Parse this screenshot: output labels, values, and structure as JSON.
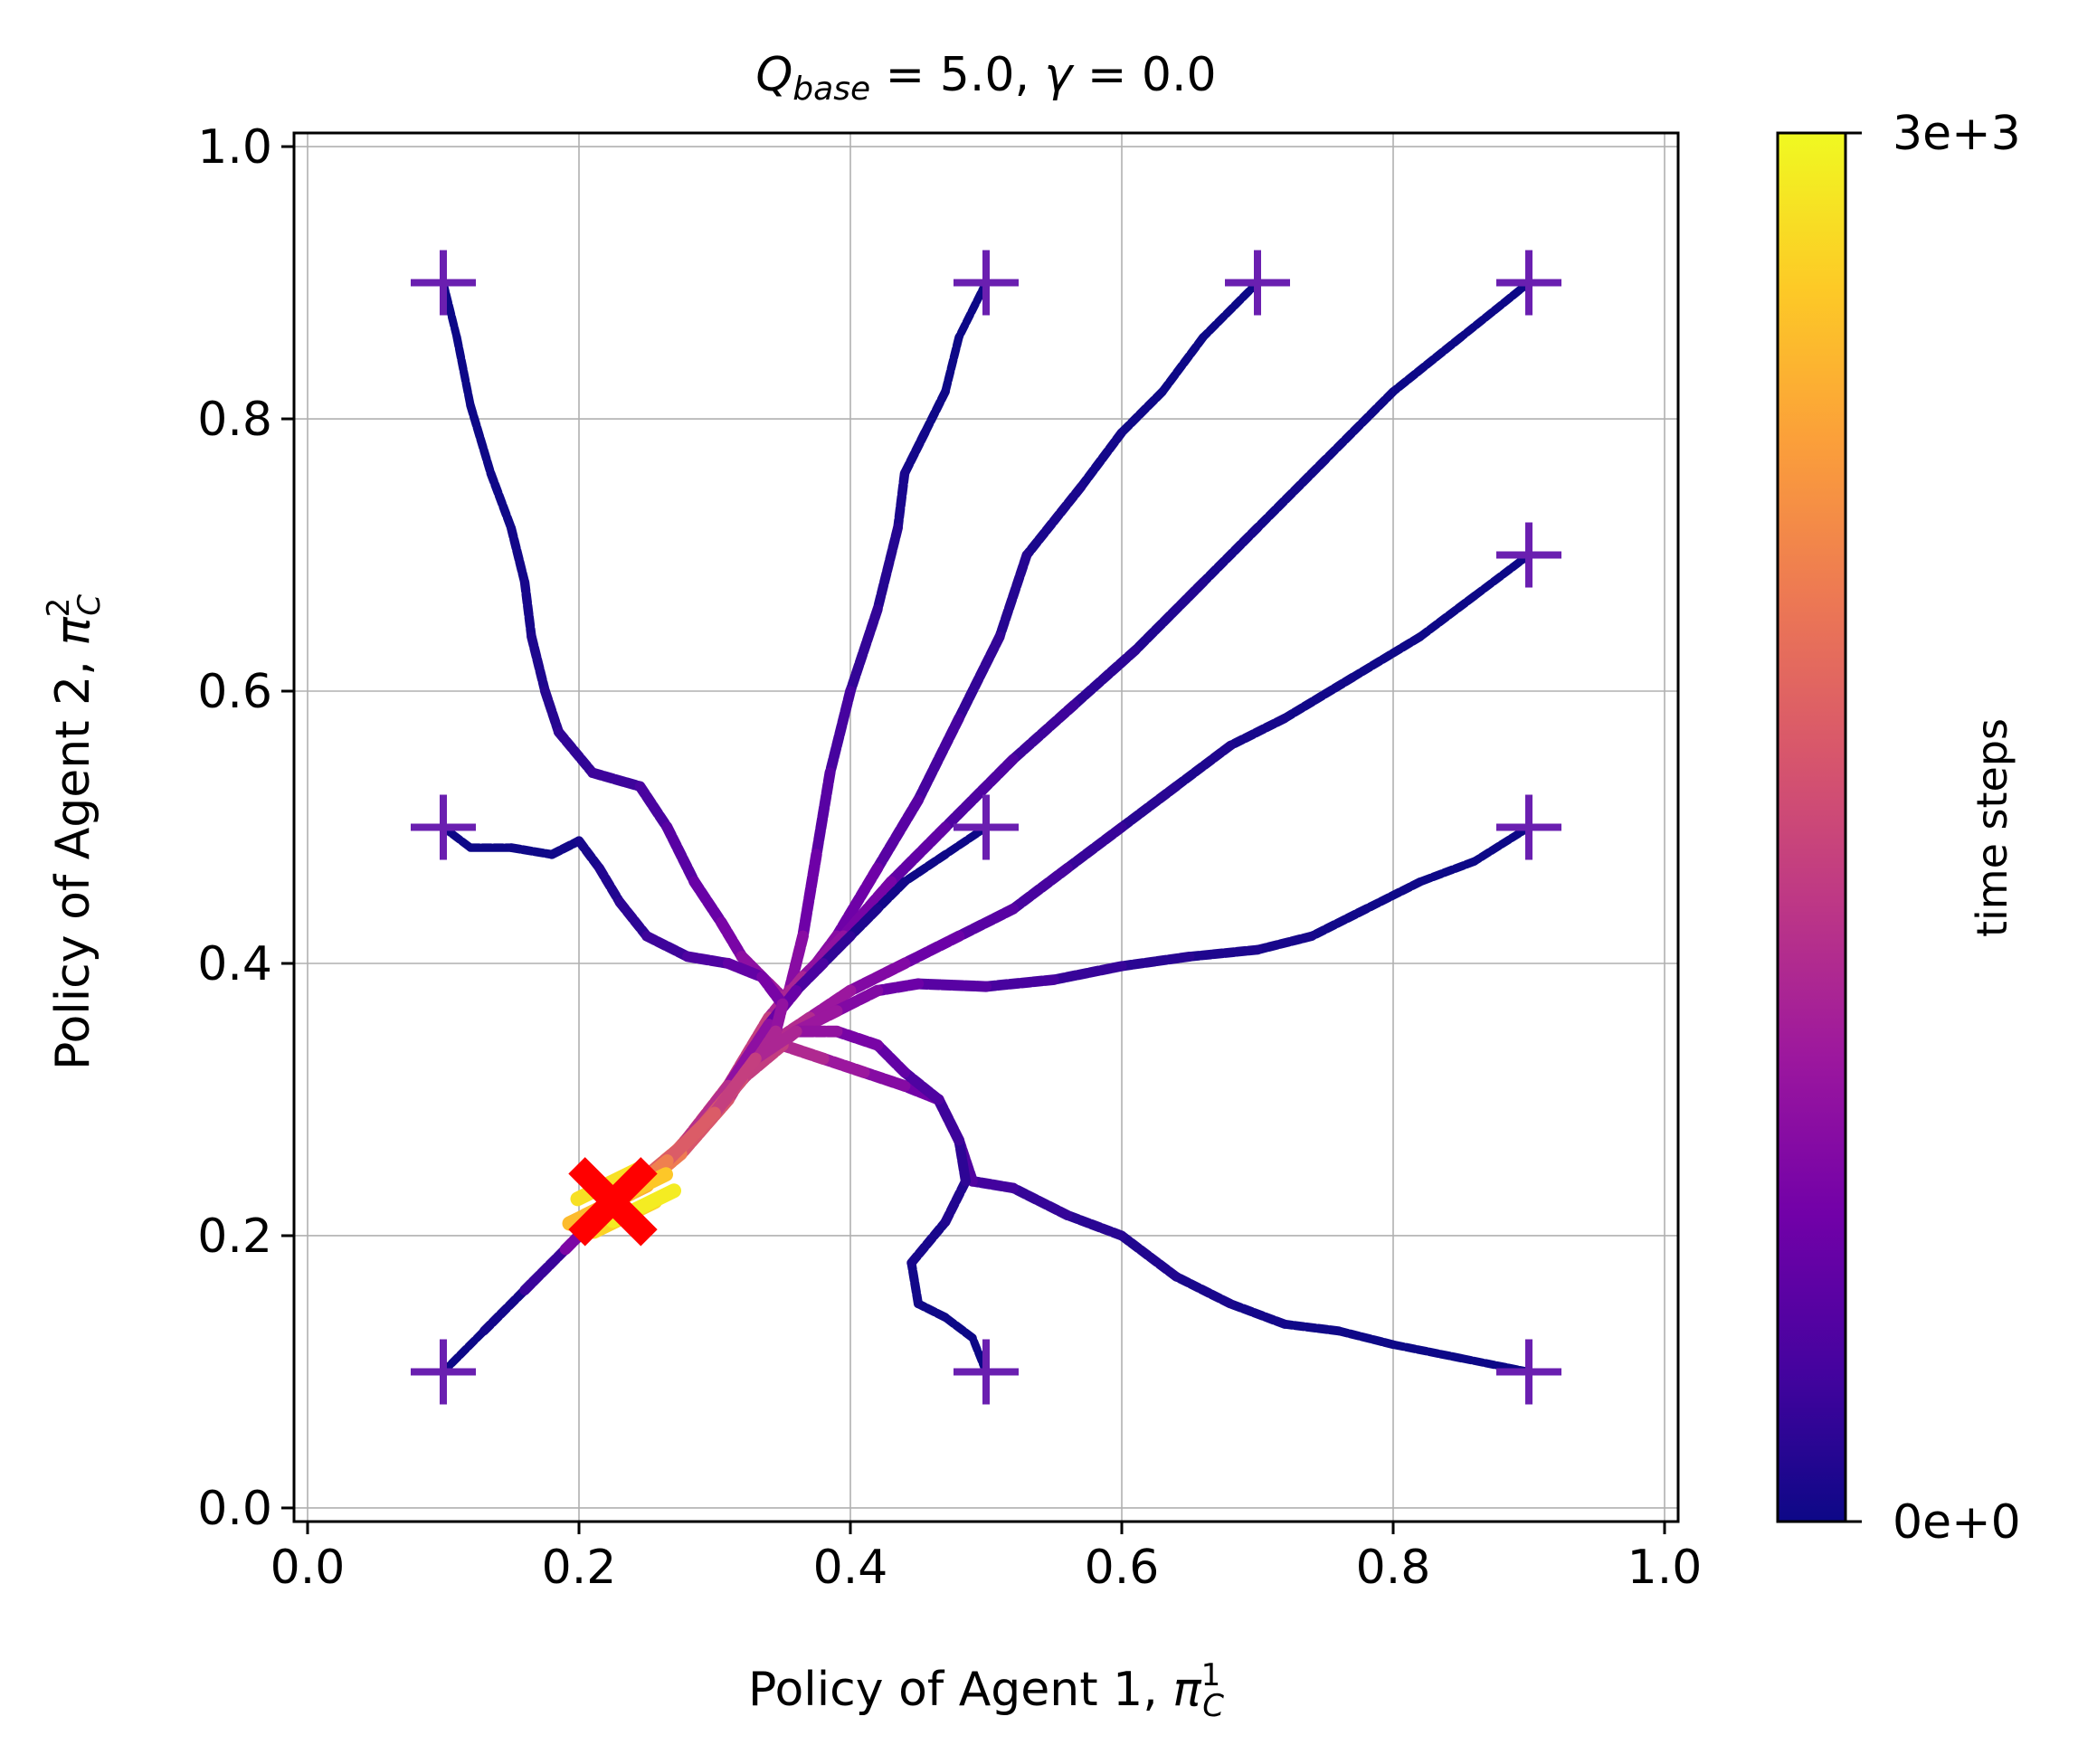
{
  "chart_data": {
    "type": "line",
    "title": {
      "q_symbol": "Q",
      "q_subscript": "base",
      "q_value": " = 5.0, ",
      "gamma_symbol": "γ",
      "gamma_value": " = 0.0"
    },
    "xlabel": {
      "prefix": "Policy of Agent 1, ",
      "symbol": "π",
      "superscript": "1",
      "subscript": "C"
    },
    "ylabel": {
      "prefix": "Policy of Agent 2, ",
      "symbol": "π",
      "superscript": "2",
      "subscript": "C"
    },
    "xlim": [
      -0.01,
      1.01
    ],
    "ylim": [
      -0.01,
      1.01
    ],
    "xticks": [
      0.0,
      0.2,
      0.4,
      0.6,
      0.8,
      1.0
    ],
    "yticks": [
      0.0,
      0.2,
      0.4,
      0.6,
      0.8,
      1.0
    ],
    "xtick_labels": [
      "0.0",
      "0.2",
      "0.4",
      "0.6",
      "0.8",
      "1.0"
    ],
    "ytick_labels": [
      "0.0",
      "0.2",
      "0.4",
      "0.6",
      "0.8",
      "1.0"
    ],
    "grid": true,
    "colormap": "plasma",
    "colors": {
      "cmap_stops": [
        "#0d0887",
        "#46039f",
        "#7201a8",
        "#9c179e",
        "#bd3786",
        "#d8576b",
        "#ed7953",
        "#fb9f3a",
        "#fdca26",
        "#f0f921"
      ],
      "start_marker": "#6a1fb0",
      "end_marker": "#ff0000",
      "grid": "#b0b0b0"
    },
    "colorbar": {
      "label": "time steps",
      "min": 0,
      "max": 3000,
      "min_label": "0e+0",
      "max_label": "3e+3"
    },
    "convergence_point": [
      0.225,
      0.225
    ],
    "series": [
      {
        "start": [
          0.1,
          0.9
        ],
        "points": [
          [
            0.1,
            0.9
          ],
          [
            0.11,
            0.86
          ],
          [
            0.12,
            0.81
          ],
          [
            0.135,
            0.76
          ],
          [
            0.15,
            0.72
          ],
          [
            0.16,
            0.68
          ],
          [
            0.165,
            0.64
          ],
          [
            0.175,
            0.6
          ],
          [
            0.185,
            0.57
          ],
          [
            0.21,
            0.54
          ],
          [
            0.245,
            0.53
          ],
          [
            0.265,
            0.5
          ],
          [
            0.285,
            0.46
          ],
          [
            0.305,
            0.43
          ],
          [
            0.32,
            0.405
          ],
          [
            0.34,
            0.385
          ],
          [
            0.35,
            0.375
          ],
          [
            0.345,
            0.36
          ],
          [
            0.33,
            0.33
          ],
          [
            0.3,
            0.29
          ],
          [
            0.27,
            0.26
          ],
          [
            0.245,
            0.24
          ],
          [
            0.225,
            0.225
          ]
        ]
      },
      {
        "start": [
          0.5,
          0.9
        ],
        "points": [
          [
            0.5,
            0.9
          ],
          [
            0.48,
            0.86
          ],
          [
            0.47,
            0.82
          ],
          [
            0.455,
            0.79
          ],
          [
            0.44,
            0.76
          ],
          [
            0.435,
            0.72
          ],
          [
            0.42,
            0.66
          ],
          [
            0.4,
            0.6
          ],
          [
            0.385,
            0.54
          ],
          [
            0.375,
            0.48
          ],
          [
            0.365,
            0.42
          ],
          [
            0.355,
            0.38
          ],
          [
            0.34,
            0.35
          ],
          [
            0.31,
            0.3
          ],
          [
            0.275,
            0.26
          ],
          [
            0.245,
            0.235
          ],
          [
            0.225,
            0.225
          ]
        ]
      },
      {
        "start": [
          0.7,
          0.9
        ],
        "points": [
          [
            0.7,
            0.9
          ],
          [
            0.66,
            0.86
          ],
          [
            0.63,
            0.82
          ],
          [
            0.6,
            0.79
          ],
          [
            0.57,
            0.75
          ],
          [
            0.53,
            0.7
          ],
          [
            0.51,
            0.64
          ],
          [
            0.48,
            0.58
          ],
          [
            0.45,
            0.52
          ],
          [
            0.42,
            0.47
          ],
          [
            0.39,
            0.42
          ],
          [
            0.36,
            0.38
          ],
          [
            0.335,
            0.35
          ],
          [
            0.305,
            0.3
          ],
          [
            0.27,
            0.26
          ],
          [
            0.245,
            0.24
          ],
          [
            0.225,
            0.225
          ]
        ]
      },
      {
        "start": [
          0.9,
          0.9
        ],
        "points": [
          [
            0.9,
            0.9
          ],
          [
            0.85,
            0.86
          ],
          [
            0.8,
            0.82
          ],
          [
            0.75,
            0.77
          ],
          [
            0.7,
            0.72
          ],
          [
            0.66,
            0.68
          ],
          [
            0.61,
            0.63
          ],
          [
            0.565,
            0.59
          ],
          [
            0.52,
            0.55
          ],
          [
            0.47,
            0.5
          ],
          [
            0.43,
            0.46
          ],
          [
            0.395,
            0.42
          ],
          [
            0.365,
            0.39
          ],
          [
            0.34,
            0.36
          ],
          [
            0.31,
            0.31
          ],
          [
            0.275,
            0.265
          ],
          [
            0.245,
            0.24
          ],
          [
            0.225,
            0.225
          ]
        ]
      },
      {
        "start": [
          0.9,
          0.7
        ],
        "points": [
          [
            0.9,
            0.7
          ],
          [
            0.86,
            0.67
          ],
          [
            0.82,
            0.64
          ],
          [
            0.77,
            0.61
          ],
          [
            0.72,
            0.58
          ],
          [
            0.68,
            0.56
          ],
          [
            0.64,
            0.53
          ],
          [
            0.6,
            0.5
          ],
          [
            0.56,
            0.47
          ],
          [
            0.52,
            0.44
          ],
          [
            0.48,
            0.42
          ],
          [
            0.44,
            0.4
          ],
          [
            0.4,
            0.38
          ],
          [
            0.37,
            0.36
          ],
          [
            0.34,
            0.34
          ],
          [
            0.31,
            0.305
          ],
          [
            0.275,
            0.265
          ],
          [
            0.245,
            0.24
          ],
          [
            0.225,
            0.225
          ]
        ]
      },
      {
        "start": [
          0.9,
          0.5
        ],
        "points": [
          [
            0.9,
            0.5
          ],
          [
            0.86,
            0.475
          ],
          [
            0.82,
            0.46
          ],
          [
            0.78,
            0.44
          ],
          [
            0.74,
            0.42
          ],
          [
            0.7,
            0.41
          ],
          [
            0.65,
            0.405
          ],
          [
            0.6,
            0.398
          ],
          [
            0.55,
            0.388
          ],
          [
            0.5,
            0.383
          ],
          [
            0.45,
            0.385
          ],
          [
            0.42,
            0.38
          ],
          [
            0.39,
            0.365
          ],
          [
            0.36,
            0.35
          ],
          [
            0.335,
            0.33
          ],
          [
            0.305,
            0.3
          ],
          [
            0.27,
            0.26
          ],
          [
            0.245,
            0.24
          ],
          [
            0.225,
            0.225
          ]
        ]
      },
      {
        "start": [
          0.5,
          0.5
        ],
        "points": [
          [
            0.5,
            0.5
          ],
          [
            0.47,
            0.48
          ],
          [
            0.44,
            0.46
          ],
          [
            0.42,
            0.44
          ],
          [
            0.4,
            0.42
          ],
          [
            0.38,
            0.4
          ],
          [
            0.36,
            0.38
          ],
          [
            0.34,
            0.355
          ],
          [
            0.31,
            0.31
          ],
          [
            0.275,
            0.265
          ],
          [
            0.245,
            0.24
          ],
          [
            0.225,
            0.225
          ]
        ]
      },
      {
        "start": [
          0.1,
          0.5
        ],
        "points": [
          [
            0.1,
            0.5
          ],
          [
            0.12,
            0.485
          ],
          [
            0.15,
            0.485
          ],
          [
            0.18,
            0.48
          ],
          [
            0.2,
            0.49
          ],
          [
            0.215,
            0.47
          ],
          [
            0.23,
            0.445
          ],
          [
            0.25,
            0.42
          ],
          [
            0.28,
            0.405
          ],
          [
            0.31,
            0.4
          ],
          [
            0.335,
            0.39
          ],
          [
            0.35,
            0.37
          ],
          [
            0.345,
            0.35
          ],
          [
            0.325,
            0.32
          ],
          [
            0.295,
            0.285
          ],
          [
            0.26,
            0.25
          ],
          [
            0.235,
            0.232
          ],
          [
            0.225,
            0.225
          ]
        ]
      },
      {
        "start": [
          0.9,
          0.1
        ],
        "points": [
          [
            0.9,
            0.1
          ],
          [
            0.85,
            0.11
          ],
          [
            0.8,
            0.12
          ],
          [
            0.76,
            0.13
          ],
          [
            0.72,
            0.135
          ],
          [
            0.68,
            0.15
          ],
          [
            0.64,
            0.17
          ],
          [
            0.6,
            0.2
          ],
          [
            0.56,
            0.215
          ],
          [
            0.52,
            0.235
          ],
          [
            0.49,
            0.24
          ],
          [
            0.48,
            0.27
          ],
          [
            0.465,
            0.3
          ],
          [
            0.44,
            0.31
          ],
          [
            0.41,
            0.32
          ],
          [
            0.38,
            0.33
          ],
          [
            0.35,
            0.34
          ],
          [
            0.32,
            0.315
          ],
          [
            0.29,
            0.28
          ],
          [
            0.26,
            0.25
          ],
          [
            0.235,
            0.232
          ],
          [
            0.225,
            0.225
          ]
        ]
      },
      {
        "start": [
          0.5,
          0.1
        ],
        "points": [
          [
            0.5,
            0.1
          ],
          [
            0.49,
            0.125
          ],
          [
            0.47,
            0.14
          ],
          [
            0.45,
            0.15
          ],
          [
            0.445,
            0.18
          ],
          [
            0.47,
            0.21
          ],
          [
            0.485,
            0.24
          ],
          [
            0.48,
            0.27
          ],
          [
            0.465,
            0.3
          ],
          [
            0.44,
            0.32
          ],
          [
            0.42,
            0.34
          ],
          [
            0.39,
            0.35
          ],
          [
            0.36,
            0.35
          ],
          [
            0.33,
            0.33
          ],
          [
            0.3,
            0.29
          ],
          [
            0.265,
            0.255
          ],
          [
            0.24,
            0.235
          ],
          [
            0.225,
            0.225
          ]
        ]
      },
      {
        "start": [
          0.1,
          0.1
        ],
        "points": [
          [
            0.1,
            0.1
          ],
          [
            0.13,
            0.13
          ],
          [
            0.16,
            0.16
          ],
          [
            0.19,
            0.19
          ],
          [
            0.21,
            0.21
          ],
          [
            0.225,
            0.225
          ]
        ]
      }
    ]
  }
}
